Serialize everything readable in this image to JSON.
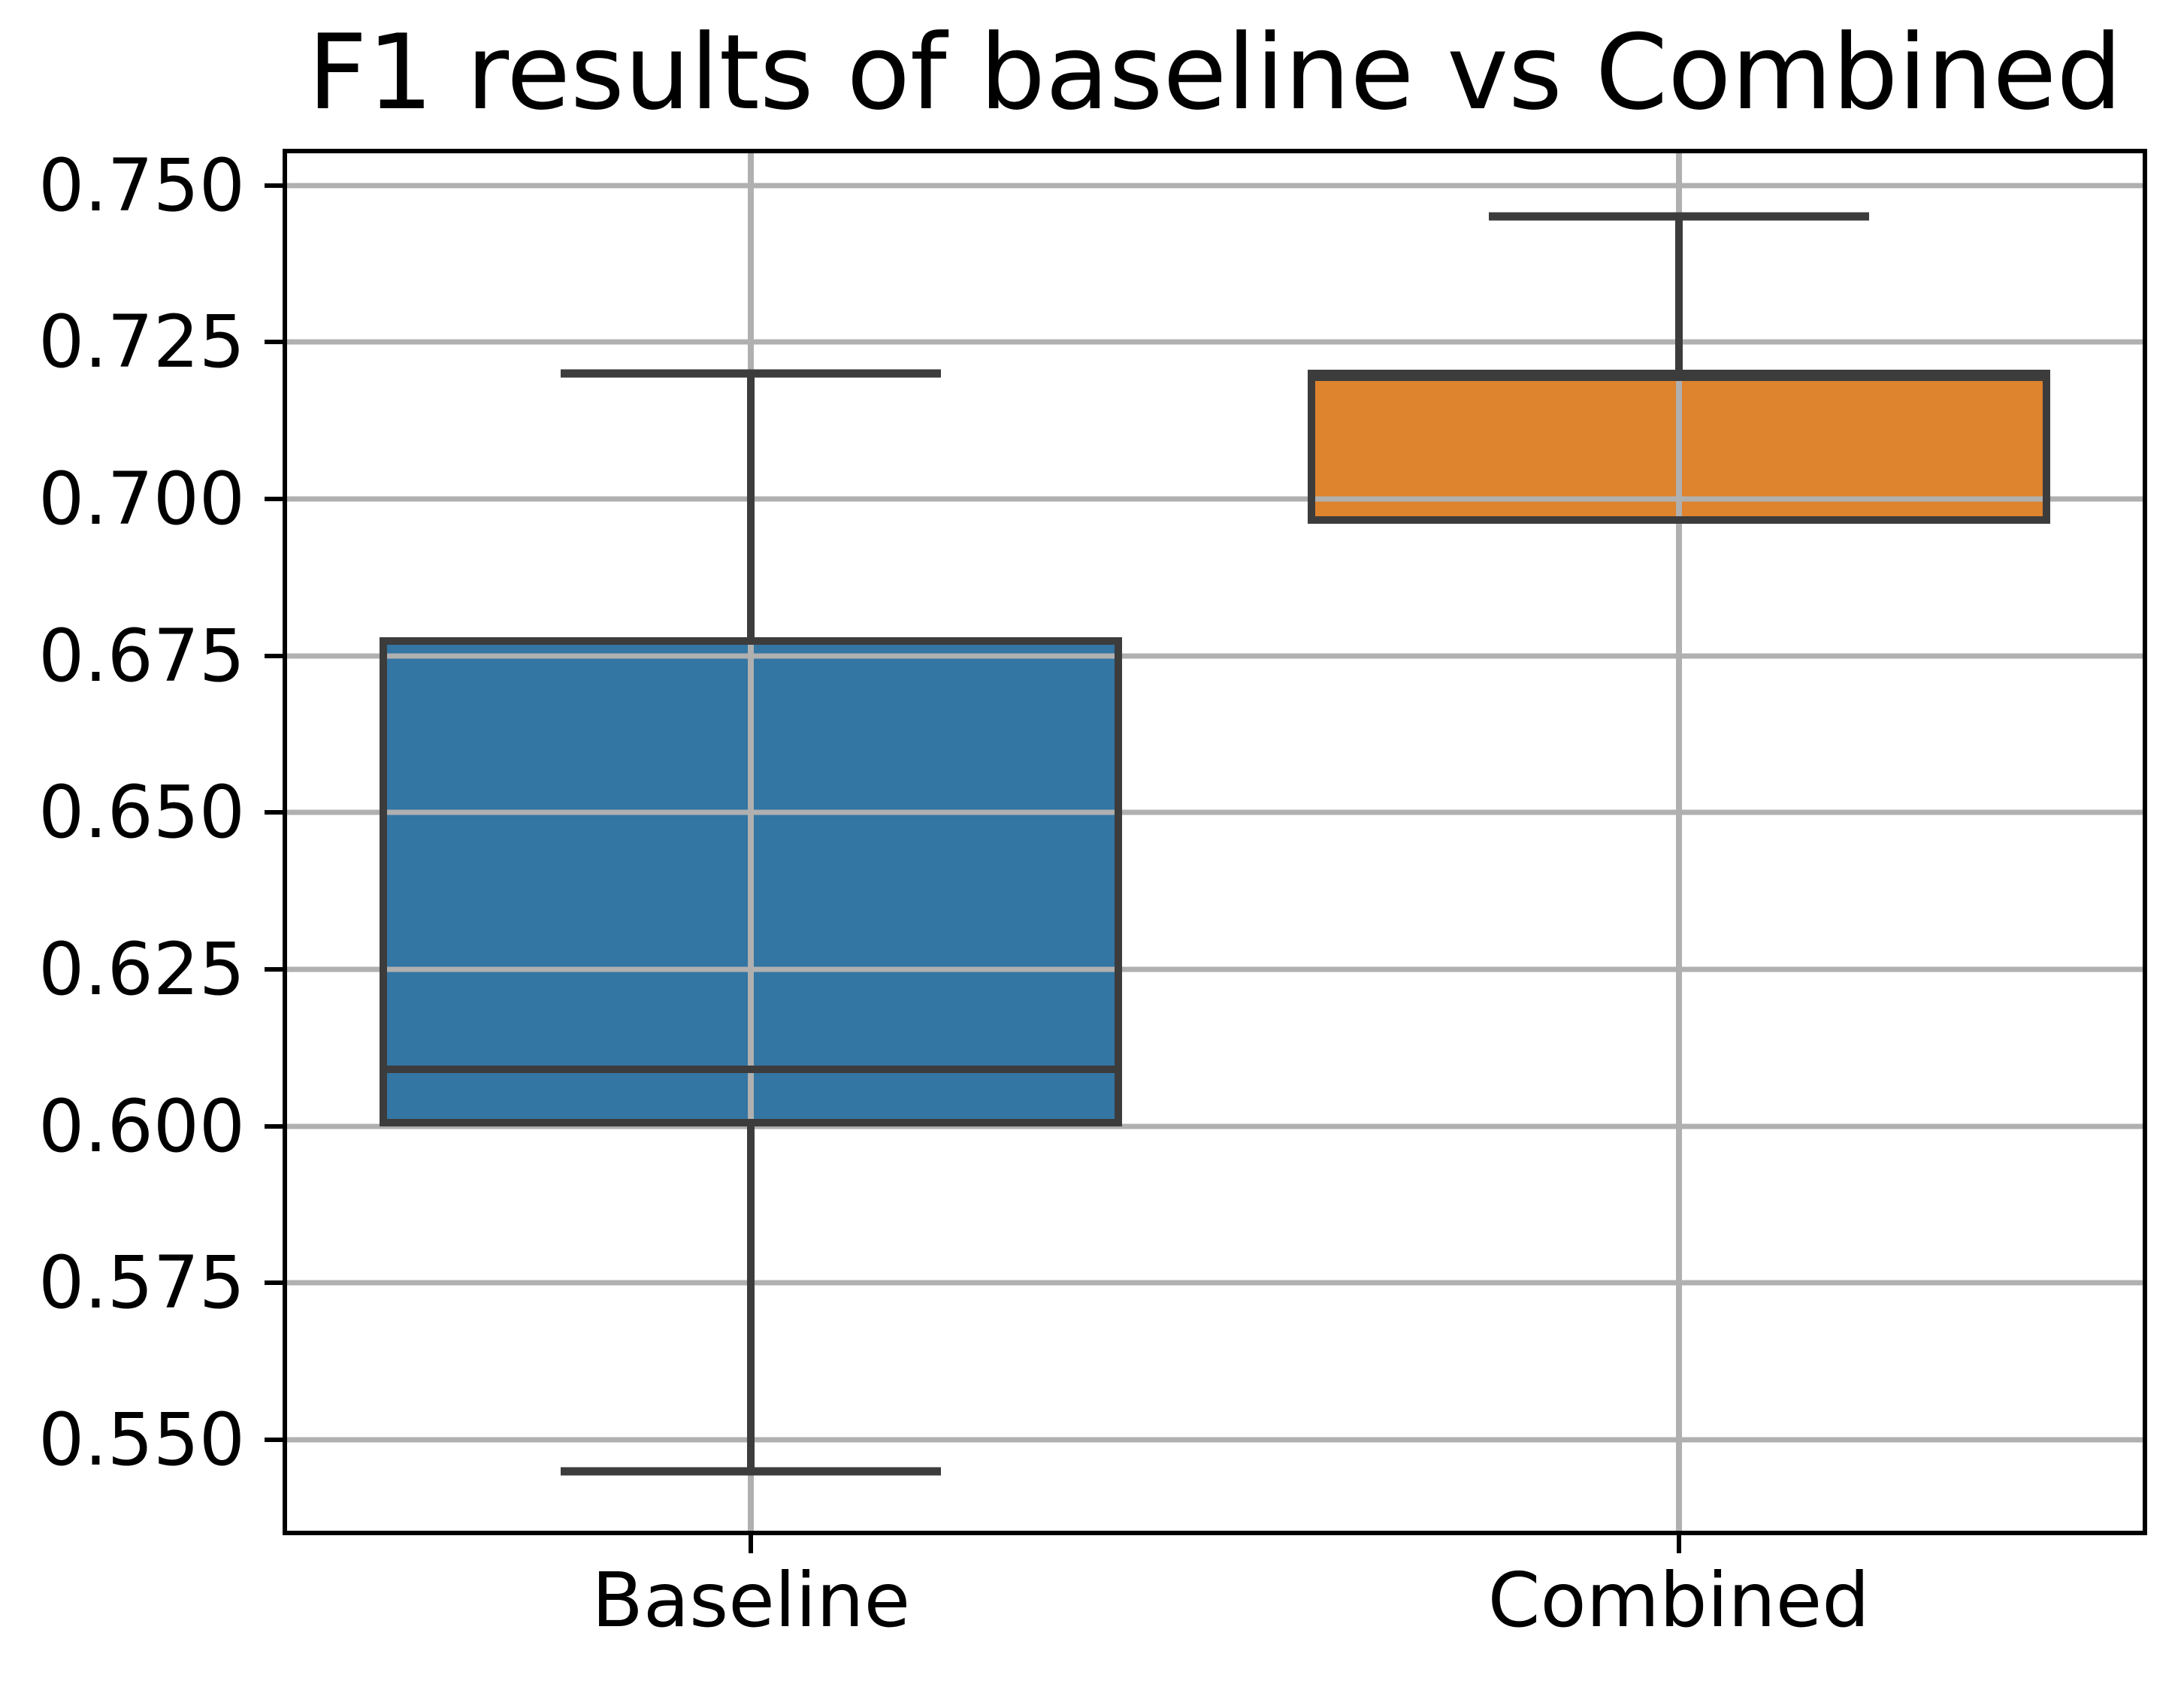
{
  "title": "F1 results of baseline vs Combined",
  "chart_data": {
    "type": "boxplot",
    "categories": [
      "Baseline",
      "Combined"
    ],
    "series": [
      {
        "name": "Baseline",
        "whisker_low": 0.545,
        "q1": 0.6,
        "median": 0.609,
        "q3": 0.678,
        "whisker_high": 0.72,
        "fill_color": "#3375A3"
      },
      {
        "name": "Combined",
        "whisker_low": 0.696,
        "q1": 0.696,
        "median": 0.72,
        "q3": 0.72,
        "whisker_high": 0.745,
        "fill_color": "#DE832E"
      }
    ],
    "yticks": [
      0.75,
      0.725,
      0.7,
      0.675,
      0.65,
      0.625,
      0.6,
      0.575,
      0.55
    ],
    "ytick_labels": [
      "0.750",
      "0.725",
      "0.700",
      "0.675",
      "0.650",
      "0.625",
      "0.600",
      "0.575",
      "0.550"
    ],
    "ylim": [
      0.5355,
      0.7551
    ],
    "xlabel": "",
    "ylabel": "",
    "grid": true,
    "legend": false
  },
  "layout_hints": {
    "box_half_width_pct": 20.0,
    "cap_half_width_pct": 10.24
  },
  "colors": {
    "box_edge": "#3C3C3C",
    "grid": "#B0B0B0",
    "spine": "#000000",
    "text": "#000000",
    "background": "#FFFFFF"
  }
}
